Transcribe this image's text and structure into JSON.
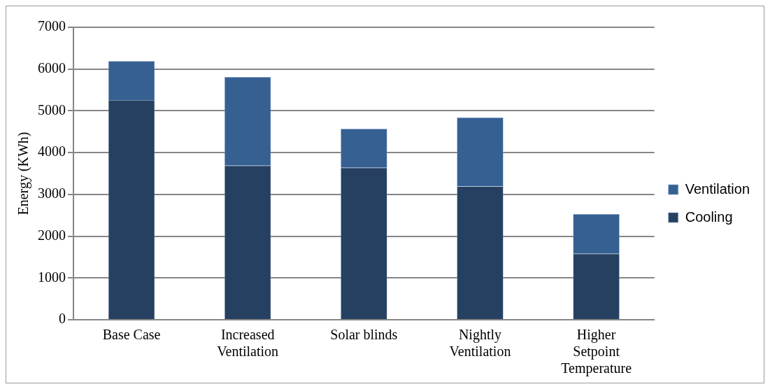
{
  "chart_data": {
    "type": "bar",
    "ylabel": "Energy (KWh)",
    "categories": [
      "Base Case",
      "Increased Ventilation",
      "Solar blinds",
      "Nightly Ventilation",
      "Higher Setpoint Temperature"
    ],
    "series": [
      {
        "name": "Cooling",
        "color": "#264061",
        "values": [
          5260,
          3690,
          3640,
          3190,
          1580
        ]
      },
      {
        "name": "Ventilation",
        "color": "#366092",
        "values": [
          930,
          2120,
          930,
          1650,
          950
        ]
      }
    ],
    "stacked": true,
    "ylim": [
      0,
      7000
    ],
    "yticks": [
      0,
      1000,
      2000,
      3000,
      4000,
      5000,
      6000,
      7000
    ],
    "grid": "y",
    "legend": "right"
  }
}
